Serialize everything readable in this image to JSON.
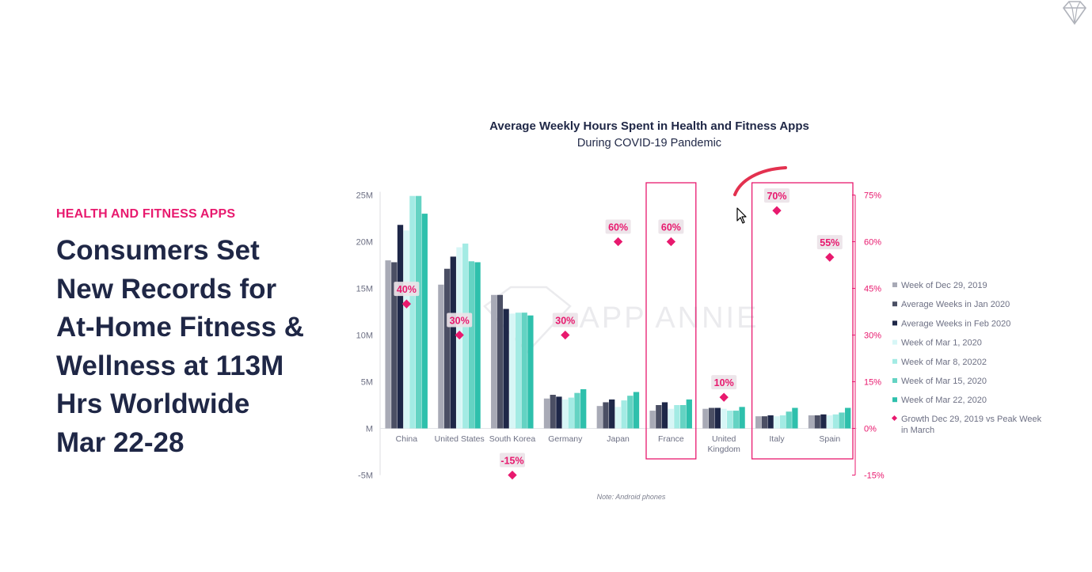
{
  "slide": {
    "section_label": "HEALTH AND FITNESS APPS",
    "headline_lines": [
      "Consumers Set",
      "New Records for",
      "At-Home Fitness &",
      "Wellness at 113M",
      "Hrs Worldwide",
      "Mar 22-28"
    ]
  },
  "icons": {
    "corner_logo": "diamond-logo-icon",
    "cursor": "mouse-pointer-icon"
  },
  "colors": {
    "accent": "#e8196e",
    "text_dark": "#1f2746",
    "series": [
      "#a8aab6",
      "#4b4f64",
      "#1e2748",
      "#d7f6f6",
      "#a3ebe4",
      "#64d3c3",
      "#2ec0ac"
    ]
  },
  "chart_data": {
    "type": "bar",
    "title": "Average Weekly Hours Spent in Health and Fitness Apps",
    "subtitle": "During COVID-19 Pandemic",
    "watermark": "APP ANNIE",
    "note": "Note: Android phones",
    "categories": [
      "China",
      "United States",
      "South Korea",
      "Germany",
      "Japan",
      "France",
      "United Kingdom",
      "Italy",
      "Spain"
    ],
    "category_label_lines": [
      [
        "China"
      ],
      [
        "United States"
      ],
      [
        "South Korea"
      ],
      [
        "Germany"
      ],
      [
        "Japan"
      ],
      [
        "France"
      ],
      [
        "United",
        "Kingdom"
      ],
      [
        "Italy"
      ],
      [
        "Spain"
      ]
    ],
    "ylim": [
      -5,
      25
    ],
    "y_ticks": [
      -5,
      0,
      5,
      10,
      15,
      20,
      25
    ],
    "y_tick_labels": [
      "-5M",
      "M",
      "5M",
      "10M",
      "15M",
      "20M",
      "25M"
    ],
    "y2lim": [
      -15,
      75
    ],
    "y2_ticks": [
      -15,
      0,
      15,
      30,
      45,
      60,
      75
    ],
    "y2_tick_labels": [
      "-15%",
      "0%",
      "15%",
      "30%",
      "45%",
      "60%",
      "75%"
    ],
    "series": [
      {
        "name": "Week of Dec 29, 2019",
        "values": [
          18.0,
          15.4,
          14.3,
          3.2,
          2.4,
          1.9,
          2.1,
          1.3,
          1.4
        ]
      },
      {
        "name": "Average Weeks in Jan 2020",
        "values": [
          17.8,
          17.1,
          14.3,
          3.6,
          2.8,
          2.5,
          2.2,
          1.3,
          1.4
        ]
      },
      {
        "name": "Average Weeks in Feb 2020",
        "values": [
          21.8,
          18.4,
          12.8,
          3.4,
          3.1,
          2.8,
          2.2,
          1.4,
          1.5
        ]
      },
      {
        "name": "Week of Mar 1, 2020",
        "values": [
          21.2,
          19.4,
          12.3,
          3.1,
          2.3,
          2.1,
          2.1,
          1.3,
          1.4
        ]
      },
      {
        "name": "Week of Mar 8, 20202",
        "values": [
          24.9,
          19.8,
          12.4,
          3.3,
          3.0,
          2.5,
          1.9,
          1.4,
          1.5
        ]
      },
      {
        "name": "Week of Mar 15, 2020",
        "values": [
          24.9,
          17.9,
          12.4,
          3.8,
          3.5,
          2.5,
          1.9,
          1.8,
          1.7
        ]
      },
      {
        "name": "Week of Mar 22, 2020",
        "values": [
          23.0,
          17.8,
          12.1,
          4.2,
          3.9,
          3.1,
          2.3,
          2.2,
          2.2
        ]
      }
    ],
    "growth_series": {
      "name": "Growth Dec 29, 2019 vs Peak Week in March",
      "name_lines": [
        "Growth Dec 29, 2019 vs Peak Week",
        "in March"
      ],
      "values": [
        40,
        30,
        -15,
        30,
        60,
        60,
        10,
        70,
        55
      ],
      "labels": [
        "40%",
        "30%",
        "-15%",
        "30%",
        "60%",
        "60%",
        "10%",
        "70%",
        "55%"
      ]
    },
    "highlighted_categories": [
      "France",
      "Italy",
      "Spain"
    ],
    "legend_position": "right"
  }
}
